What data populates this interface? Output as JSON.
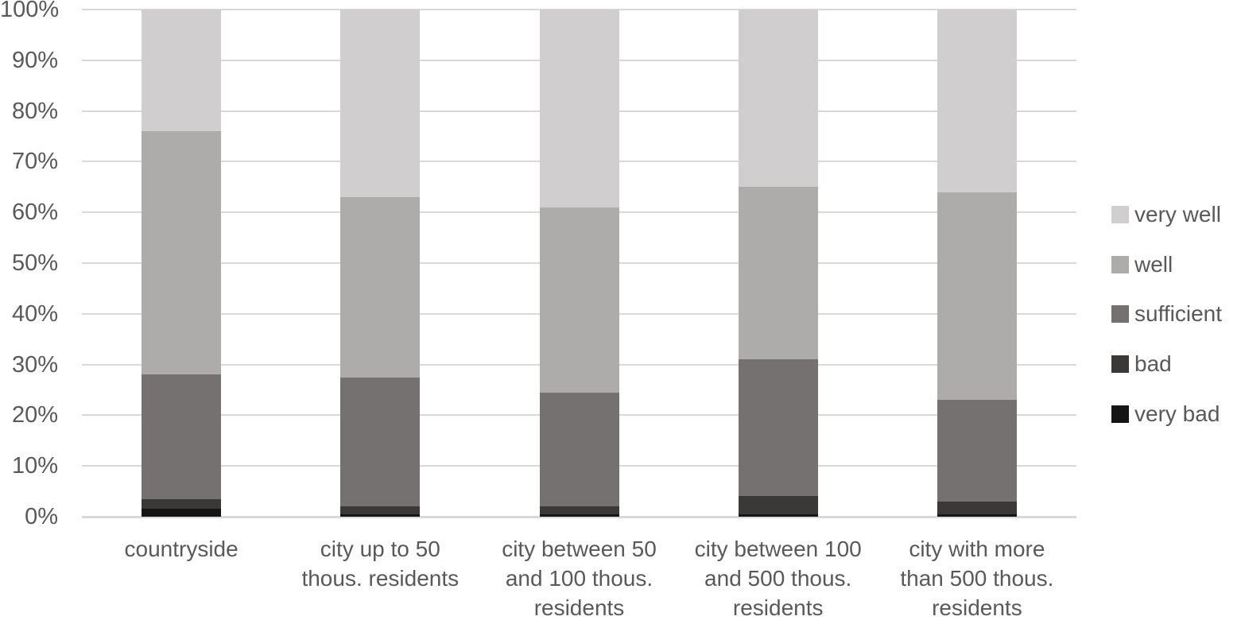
{
  "chart_data": {
    "type": "bar",
    "variant": "stacked-100-percent-column",
    "title": "",
    "categories": [
      "countryside",
      "city up to 50 thous. residents",
      "city between 50 and 100 thous. residents",
      "city between 100 and 500 thous. residents",
      "city with more than 500 thous. residents"
    ],
    "series": [
      {
        "name": "very bad",
        "color": "#171414",
        "values": [
          1.5,
          0.5,
          0.5,
          0.5,
          0.5
        ]
      },
      {
        "name": "bad",
        "color": "#3b3838",
        "values": [
          2.0,
          1.5,
          1.5,
          3.5,
          2.5
        ]
      },
      {
        "name": "sufficient",
        "color": "#767171",
        "values": [
          24.5,
          25.5,
          22.5,
          27.0,
          20.0
        ]
      },
      {
        "name": "well",
        "color": "#aeabab",
        "values": [
          48.0,
          35.5,
          36.5,
          34.0,
          41.0
        ]
      },
      {
        "name": "very well",
        "color": "#d0cece",
        "values": [
          24.0,
          37.0,
          39.0,
          35.0,
          36.0
        ]
      }
    ],
    "cumulative_tops_percent": {
      "countryside": [
        1.5,
        3.5,
        28,
        76,
        100
      ],
      "city up to 50 thous. residents": [
        0.5,
        2,
        27.5,
        63,
        100
      ],
      "city between 50 and 100 thous. residents": [
        0.5,
        2,
        24.5,
        61,
        100
      ],
      "city between 100 and 500 thous. residents": [
        0.5,
        4,
        31,
        65,
        100
      ],
      "city with more than 500 thous. residents": [
        0.5,
        3,
        23,
        64,
        100
      ]
    },
    "xlabel": "",
    "ylabel": "",
    "y_axis": {
      "min": 0,
      "max": 100,
      "unit": "%",
      "ticks": [
        "0%",
        "10%",
        "20%",
        "30%",
        "40%",
        "50%",
        "60%",
        "70%",
        "80%",
        "90%",
        "100%"
      ]
    },
    "grid": true,
    "legend": {
      "position": "right",
      "items_top_to_bottom": [
        "very well",
        "well",
        "sufficient",
        "bad",
        "very bad"
      ]
    },
    "colors": {
      "background": "#ffffff",
      "gridline": "#d9d9d9",
      "axis_line": "#d9d9d9",
      "axis_text": "#595959",
      "legend_text": "#595959"
    }
  }
}
